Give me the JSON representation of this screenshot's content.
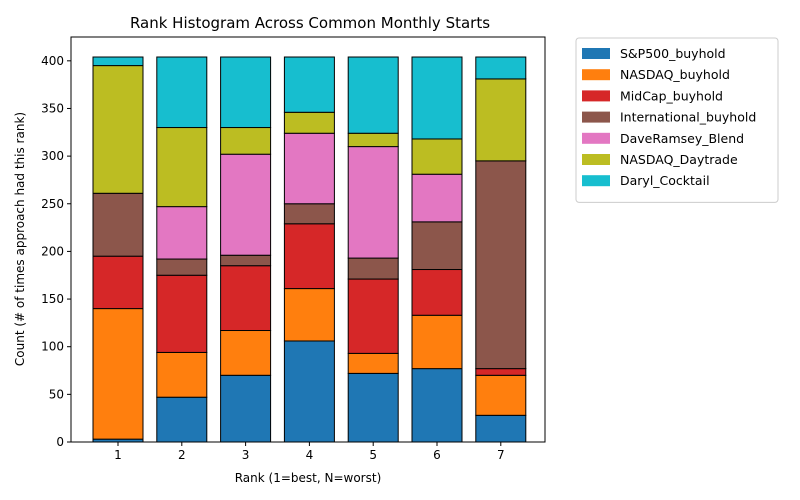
{
  "chart_data": {
    "type": "bar",
    "stacked": true,
    "title": "Rank Histogram Across Common Monthly Starts",
    "xlabel": "Rank (1=best, N=worst)",
    "ylabel": "Count (# of times approach had this rank)",
    "categories": [
      "1",
      "2",
      "3",
      "4",
      "5",
      "6",
      "7"
    ],
    "ylim": [
      0,
      425
    ],
    "yticks": [
      0,
      50,
      100,
      150,
      200,
      250,
      300,
      350,
      400
    ],
    "grid": false,
    "legend_position": "outside right, top",
    "series": [
      {
        "name": "S&P500_buyhold",
        "color": "#1f77b4",
        "values": [
          3,
          47,
          70,
          106,
          72,
          77,
          28
        ]
      },
      {
        "name": "NASDAQ_buyhold",
        "color": "#ff7f0e",
        "values": [
          137,
          47,
          47,
          55,
          21,
          56,
          42
        ]
      },
      {
        "name": "MidCap_buyhold",
        "color": "#d62728",
        "values": [
          55,
          81,
          68,
          68,
          78,
          48,
          7
        ]
      },
      {
        "name": "International_buyhold",
        "color": "#8c564b",
        "values": [
          66,
          17,
          11,
          21,
          22,
          50,
          218
        ]
      },
      {
        "name": "DaveRamsey_Blend",
        "color": "#e377c2",
        "values": [
          0,
          55,
          106,
          74,
          117,
          50,
          0
        ]
      },
      {
        "name": "NASDAQ_Daytrade",
        "color": "#bcbd22",
        "values": [
          134,
          83,
          28,
          22,
          14,
          37,
          86
        ]
      },
      {
        "name": "Daryl_Cocktail",
        "color": "#17becf",
        "values": [
          9,
          74,
          74,
          58,
          80,
          86,
          23
        ]
      }
    ]
  }
}
